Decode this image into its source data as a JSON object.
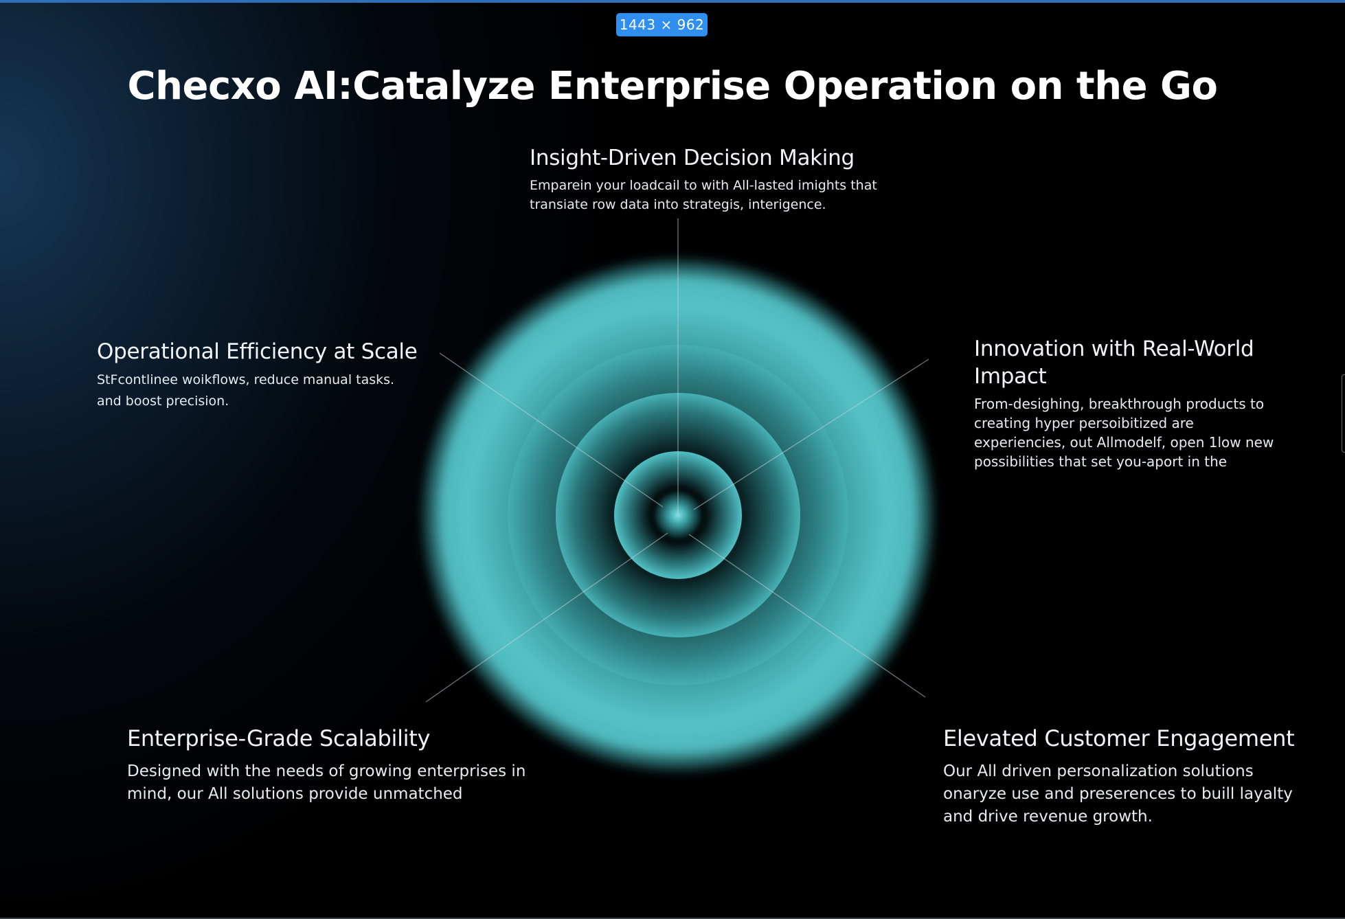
{
  "size_badge": "1443 × 962",
  "title": "Checxo AI:Catalyze Enterprise Operation on the Go",
  "colors": {
    "accent": "#4fb8bd",
    "background": "#000000",
    "badge": "#2e8ff0"
  },
  "features": {
    "insight": {
      "title": "Insight-Driven Decision Making",
      "desc_lines": [
        "Emparein your loadcail to with All-lasted imights that",
        "transiate row data into strategis, interigence."
      ]
    },
    "operational": {
      "title": "Operational Efficiency at Scale",
      "desc_lines": [
        "StFcontlinee woikflows, reduce manual tasks.",
        "and boost precision."
      ]
    },
    "innovation": {
      "title_lines": [
        "Innovation with Real-World",
        "Impact"
      ],
      "desc_lines": [
        "From-desighing, breakthrough products to",
        "creating hyper persoibitized are",
        "experiencies, out Allmodelf, open 1low new",
        "possibilities that set you-aport in the"
      ]
    },
    "scalability": {
      "title": "Enterprise-Grade Scalability",
      "desc_lines": [
        "Designed with the needs of growing enterprises in",
        "mind, our All solutions provide unmatched"
      ]
    },
    "engagement": {
      "title": "Elevated Customer Engagement",
      "desc_lines": [
        "Our All driven personalization solutions",
        "onaryze use and preserences to buill layalty",
        "and drive revenue growth."
      ]
    }
  }
}
